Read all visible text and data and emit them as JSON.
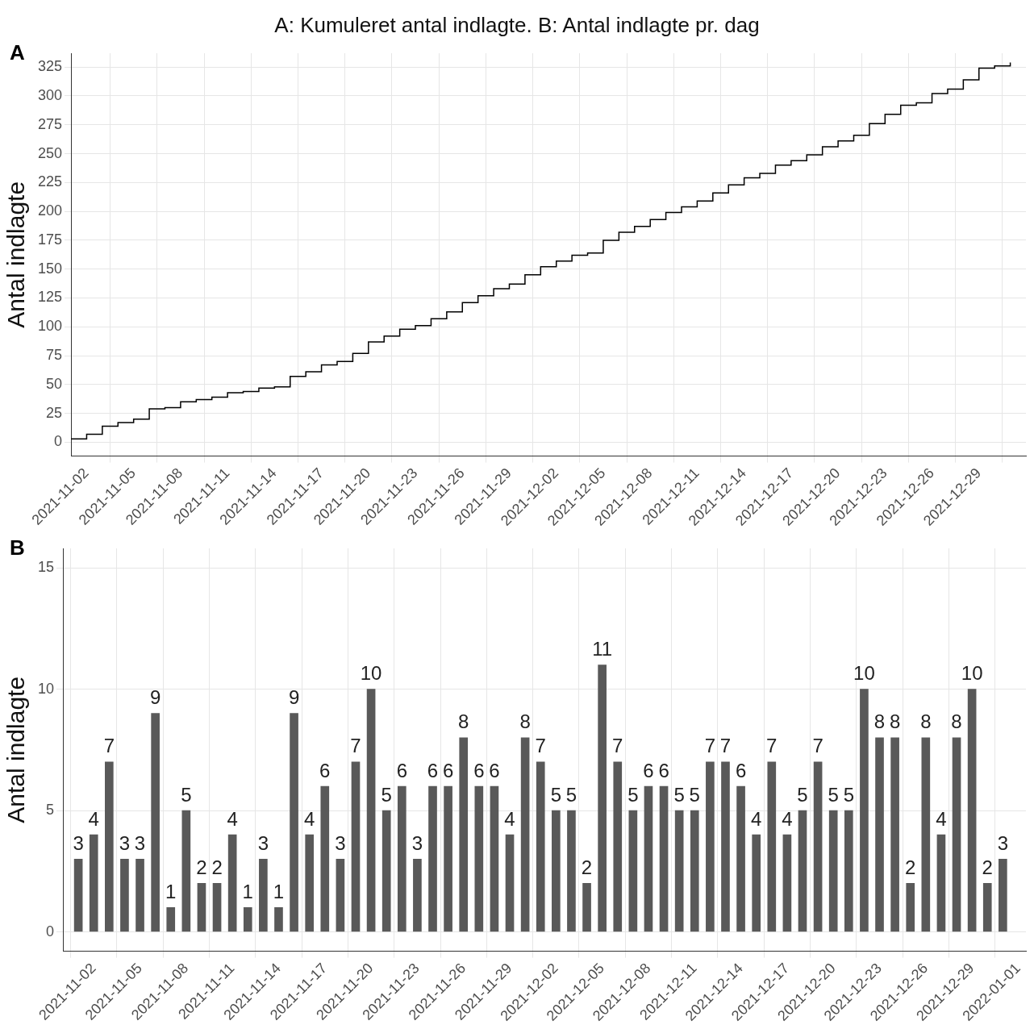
{
  "chart_data": [
    {
      "type": "step",
      "title": "A: Kumuleret antal indlagte. B: Antal indlagte pr. dag",
      "annotations": [
        "A"
      ],
      "ylabel": "Antal indlagte",
      "x": [
        "2021-11-01",
        "2021-11-02",
        "2021-11-03",
        "2021-11-04",
        "2021-11-05",
        "2021-11-06",
        "2021-11-07",
        "2021-11-08",
        "2021-11-09",
        "2021-11-10",
        "2021-11-11",
        "2021-11-12",
        "2021-11-13",
        "2021-11-14",
        "2021-11-15",
        "2021-11-16",
        "2021-11-17",
        "2021-11-18",
        "2021-11-19",
        "2021-11-20",
        "2021-11-21",
        "2021-11-22",
        "2021-11-23",
        "2021-11-24",
        "2021-11-25",
        "2021-11-26",
        "2021-11-27",
        "2021-11-28",
        "2021-11-29",
        "2021-11-30",
        "2021-12-01",
        "2021-12-02",
        "2021-12-03",
        "2021-12-04",
        "2021-12-05",
        "2021-12-06",
        "2021-12-07",
        "2021-12-08",
        "2021-12-09",
        "2021-12-10",
        "2021-12-11",
        "2021-12-12",
        "2021-12-13",
        "2021-12-14",
        "2021-12-15",
        "2021-12-16",
        "2021-12-17",
        "2021-12-18",
        "2021-12-19",
        "2021-12-20",
        "2021-12-21",
        "2021-12-22",
        "2021-12-23",
        "2021-12-24",
        "2021-12-25",
        "2021-12-26",
        "2021-12-27",
        "2021-12-28",
        "2021-12-29",
        "2021-12-30",
        "2021-12-31"
      ],
      "series": [
        {
          "color": "#000000",
          "values": [
            3,
            7,
            14,
            17,
            20,
            29,
            30,
            35,
            37,
            39,
            43,
            44,
            47,
            48,
            57,
            61,
            67,
            70,
            77,
            87,
            92,
            98,
            101,
            107,
            113,
            121,
            127,
            133,
            137,
            145,
            152,
            157,
            162,
            164,
            175,
            182,
            187,
            193,
            199,
            204,
            209,
            216,
            223,
            229,
            233,
            240,
            244,
            249,
            256,
            261,
            266,
            276,
            284,
            292,
            294,
            302,
            306,
            314,
            324,
            326,
            329
          ]
        }
      ],
      "xlim": [
        "2021-11-01",
        "2022-01-01"
      ],
      "xticks": [
        "2021-11-02",
        "2021-11-05",
        "2021-11-08",
        "2021-11-11",
        "2021-11-14",
        "2021-11-17",
        "2021-11-20",
        "2021-11-23",
        "2021-11-26",
        "2021-11-29",
        "2021-12-02",
        "2021-12-05",
        "2021-12-08",
        "2021-12-11",
        "2021-12-14",
        "2021-12-17",
        "2021-12-20",
        "2021-12-23",
        "2021-12-26",
        "2021-12-29"
      ],
      "ylim": [
        -12,
        337
      ],
      "yticks": [
        0,
        25,
        50,
        75,
        100,
        125,
        150,
        175,
        200,
        225,
        250,
        275,
        300,
        325
      ],
      "grid": true,
      "legend": false
    },
    {
      "type": "bar",
      "annotations": [
        "B"
      ],
      "ylabel": "Antal indlagte",
      "x": [
        "2021-11-01",
        "2021-11-02",
        "2021-11-03",
        "2021-11-04",
        "2021-11-05",
        "2021-11-06",
        "2021-11-07",
        "2021-11-08",
        "2021-11-09",
        "2021-11-10",
        "2021-11-11",
        "2021-11-12",
        "2021-11-13",
        "2021-11-14",
        "2021-11-15",
        "2021-11-16",
        "2021-11-17",
        "2021-11-18",
        "2021-11-19",
        "2021-11-20",
        "2021-11-21",
        "2021-11-22",
        "2021-11-23",
        "2021-11-24",
        "2021-11-25",
        "2021-11-26",
        "2021-11-27",
        "2021-11-28",
        "2021-11-29",
        "2021-11-30",
        "2021-12-01",
        "2021-12-02",
        "2021-12-03",
        "2021-12-04",
        "2021-12-05",
        "2021-12-06",
        "2021-12-07",
        "2021-12-08",
        "2021-12-09",
        "2021-12-10",
        "2021-12-11",
        "2021-12-12",
        "2021-12-13",
        "2021-12-14",
        "2021-12-15",
        "2021-12-16",
        "2021-12-17",
        "2021-12-18",
        "2021-12-19",
        "2021-12-20",
        "2021-12-21",
        "2021-12-22",
        "2021-12-23",
        "2021-12-24",
        "2021-12-25",
        "2021-12-26",
        "2021-12-27",
        "2021-12-28",
        "2021-12-29",
        "2021-12-30",
        "2021-12-31"
      ],
      "series": [
        {
          "color": "#595959",
          "values": [
            3,
            4,
            7,
            3,
            3,
            9,
            1,
            5,
            2,
            2,
            4,
            1,
            3,
            1,
            9,
            4,
            6,
            3,
            7,
            10,
            5,
            6,
            3,
            6,
            6,
            8,
            6,
            6,
            4,
            8,
            7,
            5,
            5,
            2,
            11,
            7,
            5,
            6,
            6,
            5,
            5,
            7,
            7,
            6,
            4,
            7,
            4,
            5,
            7,
            5,
            5,
            10,
            8,
            8,
            2,
            8,
            4,
            8,
            10,
            2,
            3
          ]
        }
      ],
      "xlim": [
        "2021-10-31",
        "2022-01-01T12:00"
      ],
      "xticks": [
        "2021-11-02",
        "2021-11-05",
        "2021-11-08",
        "2021-11-11",
        "2021-11-14",
        "2021-11-17",
        "2021-11-20",
        "2021-11-23",
        "2021-11-26",
        "2021-11-29",
        "2021-12-02",
        "2021-12-05",
        "2021-12-08",
        "2021-12-11",
        "2021-12-14",
        "2021-12-17",
        "2021-12-20",
        "2021-12-23",
        "2021-12-26",
        "2021-12-29",
        "2022-01-01"
      ],
      "ylim": [
        -0.8,
        15.8
      ],
      "yticks": [
        0,
        5,
        10,
        15
      ],
      "grid": true,
      "legend": false,
      "data_labels": true
    }
  ]
}
